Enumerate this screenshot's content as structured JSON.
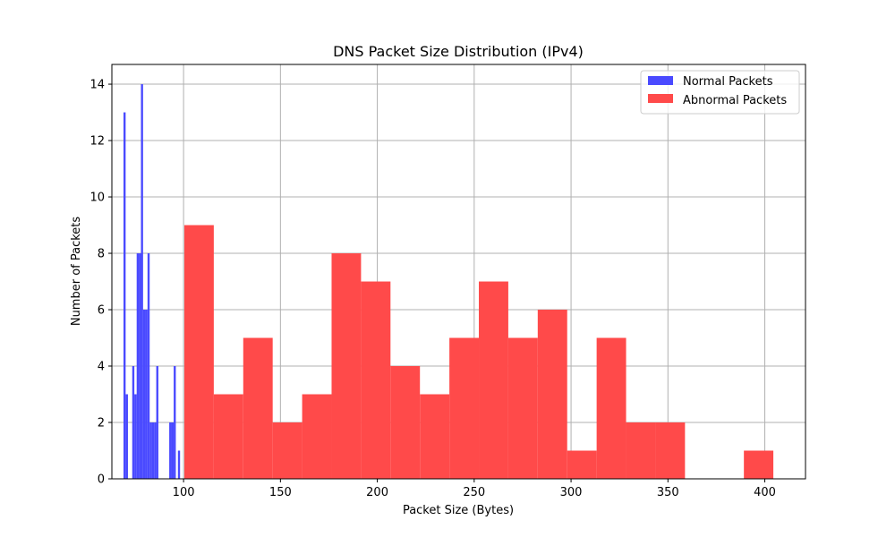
{
  "chart_data": {
    "type": "bar",
    "title": "DNS Packet Size Distribution (IPv4)",
    "xlabel": "Packet Size (Bytes)",
    "ylabel": "Number of Packets",
    "xlim": [
      63,
      421
    ],
    "ylim": [
      0,
      14.7
    ],
    "xticks": [
      100,
      150,
      200,
      250,
      300,
      350,
      400
    ],
    "yticks": [
      0,
      2,
      4,
      6,
      8,
      10,
      12,
      14
    ],
    "grid": true,
    "legend_position": "top-right",
    "series": [
      {
        "name": "Normal Packets",
        "color": "#4a4aff",
        "bars": [
          {
            "x0": 69.0,
            "x1": 70.1,
            "count": 13
          },
          {
            "x0": 70.1,
            "x1": 71.3,
            "count": 3
          },
          {
            "x0": 73.5,
            "x1": 74.6,
            "count": 4
          },
          {
            "x0": 74.6,
            "x1": 75.8,
            "count": 3
          },
          {
            "x0": 75.8,
            "x1": 76.9,
            "count": 8
          },
          {
            "x0": 76.9,
            "x1": 78.0,
            "count": 8
          },
          {
            "x0": 78.0,
            "x1": 79.1,
            "count": 14
          },
          {
            "x0": 79.1,
            "x1": 80.3,
            "count": 6
          },
          {
            "x0": 80.3,
            "x1": 81.4,
            "count": 6
          },
          {
            "x0": 81.4,
            "x1": 82.5,
            "count": 8
          },
          {
            "x0": 82.5,
            "x1": 83.6,
            "count": 2
          },
          {
            "x0": 83.6,
            "x1": 84.8,
            "count": 2
          },
          {
            "x0": 84.8,
            "x1": 85.9,
            "count": 2
          },
          {
            "x0": 85.9,
            "x1": 87.0,
            "count": 4
          },
          {
            "x0": 92.6,
            "x1": 93.7,
            "count": 2
          },
          {
            "x0": 93.7,
            "x1": 94.9,
            "count": 2
          },
          {
            "x0": 94.9,
            "x1": 96.0,
            "count": 4
          },
          {
            "x0": 97.1,
            "x1": 98.2,
            "count": 1
          }
        ]
      },
      {
        "name": "Abnormal Packets",
        "color": "#ff4a4a",
        "bars": [
          {
            "x0": 100.4,
            "x1": 115.6,
            "count": 9
          },
          {
            "x0": 115.6,
            "x1": 130.8,
            "count": 3
          },
          {
            "x0": 130.8,
            "x1": 146.0,
            "count": 5
          },
          {
            "x0": 146.0,
            "x1": 161.2,
            "count": 2
          },
          {
            "x0": 161.2,
            "x1": 176.4,
            "count": 3
          },
          {
            "x0": 176.4,
            "x1": 191.6,
            "count": 8
          },
          {
            "x0": 191.6,
            "x1": 206.8,
            "count": 7
          },
          {
            "x0": 206.8,
            "x1": 222.0,
            "count": 4
          },
          {
            "x0": 222.0,
            "x1": 237.2,
            "count": 3
          },
          {
            "x0": 237.2,
            "x1": 252.4,
            "count": 5
          },
          {
            "x0": 252.4,
            "x1": 267.6,
            "count": 7
          },
          {
            "x0": 267.6,
            "x1": 282.8,
            "count": 5
          },
          {
            "x0": 282.8,
            "x1": 298.0,
            "count": 6
          },
          {
            "x0": 298.0,
            "x1": 313.2,
            "count": 1
          },
          {
            "x0": 313.2,
            "x1": 328.4,
            "count": 5
          },
          {
            "x0": 328.4,
            "x1": 343.6,
            "count": 2
          },
          {
            "x0": 343.6,
            "x1": 358.8,
            "count": 2
          },
          {
            "x0": 389.2,
            "x1": 404.4,
            "count": 1
          }
        ]
      }
    ]
  }
}
